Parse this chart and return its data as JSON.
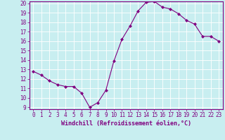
{
  "x": [
    0,
    1,
    2,
    3,
    4,
    5,
    6,
    7,
    8,
    9,
    10,
    11,
    12,
    13,
    14,
    15,
    16,
    17,
    18,
    19,
    20,
    21,
    22,
    23
  ],
  "y": [
    12.8,
    12.4,
    11.8,
    11.4,
    11.2,
    11.2,
    10.5,
    9.0,
    9.5,
    10.8,
    13.9,
    16.2,
    17.6,
    19.2,
    20.1,
    20.2,
    19.6,
    19.4,
    18.9,
    18.2,
    17.8,
    16.5,
    16.5,
    16.0
  ],
  "line_color": "#800080",
  "marker": "D",
  "marker_size": 2,
  "bg_color": "#c8eef0",
  "grid_color": "#aadddd",
  "xlabel": "Windchill (Refroidissement éolien,°C)",
  "xlabel_color": "#800080",
  "tick_color": "#800080",
  "spine_color": "#800080",
  "ylim": [
    9,
    20
  ],
  "xlim": [
    -0.5,
    23.5
  ],
  "yticks": [
    9,
    10,
    11,
    12,
    13,
    14,
    15,
    16,
    17,
    18,
    19,
    20
  ],
  "xticks": [
    0,
    1,
    2,
    3,
    4,
    5,
    6,
    7,
    8,
    9,
    10,
    11,
    12,
    13,
    14,
    15,
    16,
    17,
    18,
    19,
    20,
    21,
    22,
    23
  ],
  "tick_fontsize": 5.5,
  "xlabel_fontsize": 6.0
}
